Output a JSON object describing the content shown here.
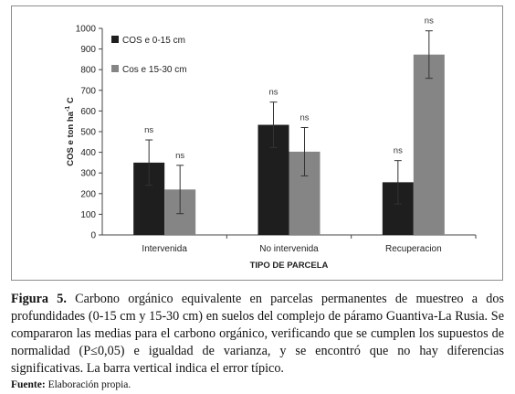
{
  "chart_data": {
    "type": "bar",
    "categories": [
      "Intervenida",
      "No intervenida",
      "Recuperacion"
    ],
    "series": [
      {
        "name": "COS e 0-15 cm",
        "color": "#1e1e1e",
        "values": [
          350,
          533,
          255
        ],
        "errors": [
          110,
          110,
          105
        ],
        "sig": [
          "ns",
          "ns",
          "ns"
        ]
      },
      {
        "name": "Cos e 15-30 cm",
        "color": "#858585",
        "values": [
          220,
          403,
          873
        ],
        "errors": [
          117,
          117,
          115
        ],
        "sig": [
          "ns",
          "ns",
          "ns"
        ]
      }
    ],
    "ylabel": "COS e ton ha-1 C",
    "ylabel_parts": {
      "main": "COS e ton ha",
      "sup": "-1",
      "end": " C"
    },
    "xlabel": "TIPO DE PARCELA",
    "ylim": [
      0,
      1000
    ],
    "yticks": [
      "0",
      "100",
      "200",
      "300",
      "400",
      "500",
      "600",
      "700",
      "800",
      "900",
      "1000"
    ],
    "grid": false,
    "legend_position": "top-left"
  },
  "caption": {
    "label": "Figura 5.",
    "text": " Carbono orgánico equivalente en parcelas permanentes de muestreo a dos profundidades (0-15 cm y 15-30 cm) en suelos del complejo de páramo Guantiva-La Rusia. Se compararon las medias para el carbono orgánico, verificando que se cumplen los supuestos de normalidad (P≤0,05) e igualdad de varianza, y se encontró que no hay diferencias significativas. La barra vertical indica el error típico."
  },
  "source": {
    "label": "Fuente:",
    "text": " Elaboración propia."
  }
}
